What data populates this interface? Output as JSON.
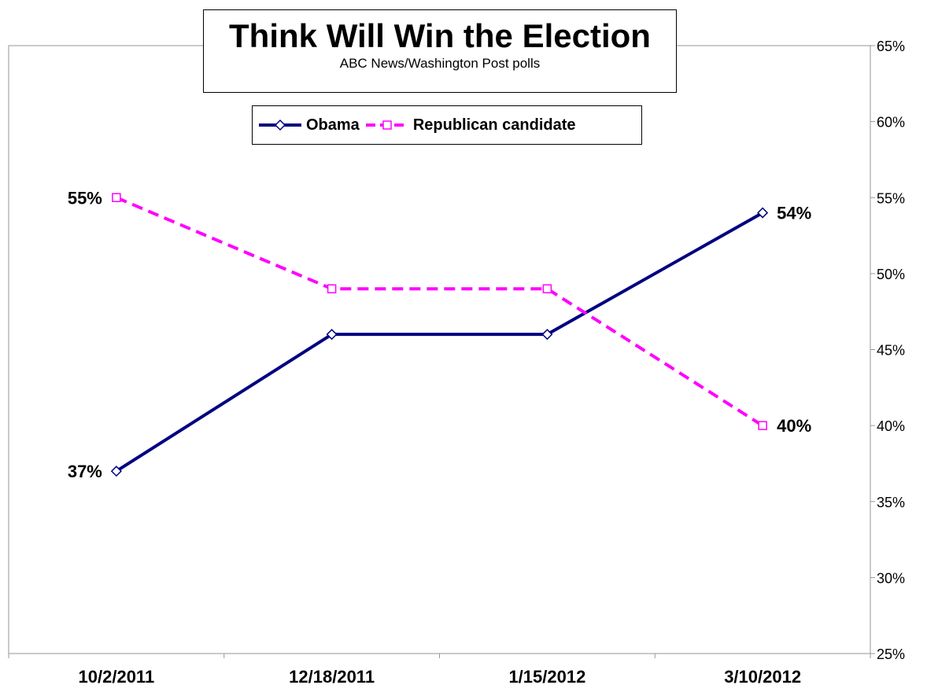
{
  "chart_data": {
    "type": "line",
    "title": "Think Will Win the Election",
    "subtitle": "ABC News/Washington  Post polls",
    "categories": [
      "10/2/2011",
      "12/18/2011",
      "1/15/2012",
      "3/10/2012"
    ],
    "series": [
      {
        "name": "Obama",
        "values": [
          37,
          46,
          46,
          54
        ],
        "color": "#000080",
        "line_style": "solid",
        "marker": "diamond",
        "labels": [
          "37%",
          "",
          "",
          "54%"
        ]
      },
      {
        "name": "Republican candidate",
        "values": [
          55,
          49,
          49,
          40
        ],
        "color": "#FF00FF",
        "line_style": "dashed",
        "marker": "square",
        "labels": [
          "55%",
          "",
          "",
          "40%"
        ]
      }
    ],
    "y_axis": {
      "position": "right",
      "ylim": [
        25,
        65
      ],
      "ticks": [
        25,
        30,
        35,
        40,
        45,
        50,
        55,
        60,
        65
      ],
      "tick_labels": [
        "25%",
        "30%",
        "35%",
        "40%",
        "45%",
        "50%",
        "55%",
        "60%",
        "65%"
      ]
    },
    "grid": false,
    "legend_placement": "top-center"
  }
}
